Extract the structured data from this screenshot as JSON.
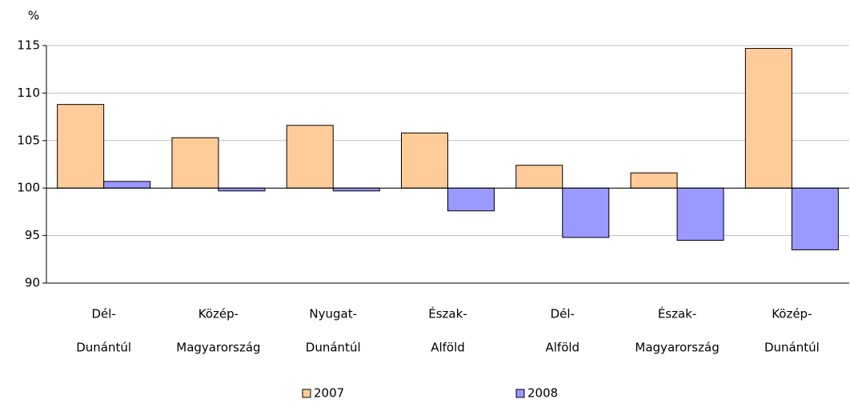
{
  "chart_data": {
    "type": "bar",
    "y_label": "%",
    "categories": [
      [
        "Dél-",
        "Dunántúl"
      ],
      [
        "Közép-",
        "Magyarország"
      ],
      [
        "Nyugat-",
        "Dunántúl"
      ],
      [
        "Észak-",
        "Alföld"
      ],
      [
        "Dél-",
        "Alföld"
      ],
      [
        "Észak-",
        "Magyarország"
      ],
      [
        "Közép-",
        "Dunántúl"
      ]
    ],
    "series": [
      {
        "name": "2007",
        "color": "#ffcc99",
        "values": [
          108.8,
          105.3,
          106.6,
          105.8,
          102.4,
          101.6,
          114.7
        ]
      },
      {
        "name": "2008",
        "color": "#9999ff",
        "values": [
          100.7,
          99.7,
          99.7,
          97.6,
          94.8,
          94.5,
          93.5
        ]
      }
    ],
    "bar_base": 100,
    "ylim": [
      90,
      115
    ],
    "yticks": [
      90,
      95,
      100,
      105,
      110,
      115
    ],
    "grid": true,
    "legend": "bottom"
  }
}
